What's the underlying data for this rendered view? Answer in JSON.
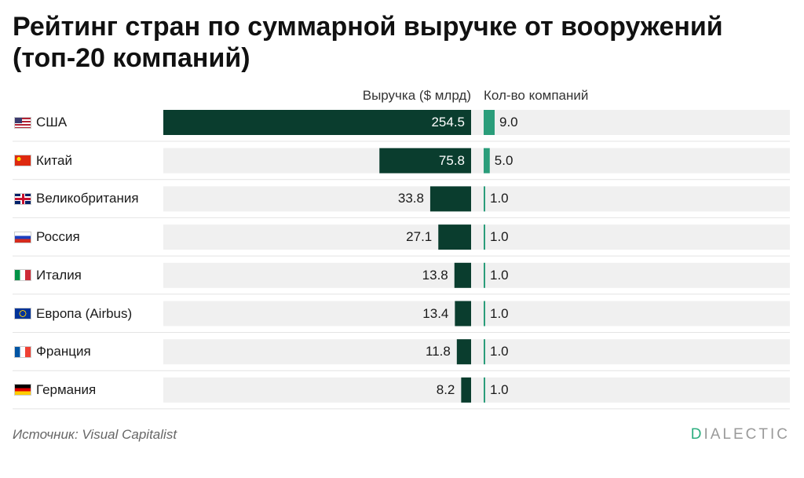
{
  "title": "Рейтинг стран по суммарной выручке от вооружений (топ-20 компаний)",
  "colors": {
    "bar_dark": "#0a3d2e",
    "bar_teal": "#2a9d7a",
    "row_bg": "#f0f0f0"
  },
  "chart_data": {
    "type": "bar",
    "orientation": "horizontal",
    "title": "Рейтинг стран по суммарной выручке от вооружений (топ-20 компаний)",
    "columns": [
      "Выручка ($ млрд)",
      "Кол-во компаний"
    ],
    "categories": [
      "США",
      "Китай",
      "Великобритания",
      "Россия",
      "Италия",
      "Европа (Airbus)",
      "Франция",
      "Германия"
    ],
    "flags": [
      "us",
      "cn",
      "gb",
      "ru",
      "it",
      "eu",
      "fr",
      "de"
    ],
    "series": [
      {
        "name": "Выручка ($ млрд)",
        "values": [
          254.5,
          75.8,
          33.8,
          27.1,
          13.8,
          13.4,
          11.8,
          8.2
        ],
        "labels": [
          "254.5",
          "75.8",
          "33.8",
          "27.1",
          "13.8",
          "13.4",
          "11.8",
          "8.2"
        ]
      },
      {
        "name": "Кол-во компаний",
        "values": [
          9.0,
          5.0,
          1.0,
          1.0,
          1.0,
          1.0,
          1.0,
          1.0
        ],
        "labels": [
          "9.0",
          "5.0",
          "1.0",
          "1.0",
          "1.0",
          "1.0",
          "1.0",
          "1.0"
        ]
      }
    ]
  },
  "footer": {
    "source": "Источник: Visual Capitalist",
    "brand_first": "D",
    "brand_rest": "IALECTIC"
  }
}
